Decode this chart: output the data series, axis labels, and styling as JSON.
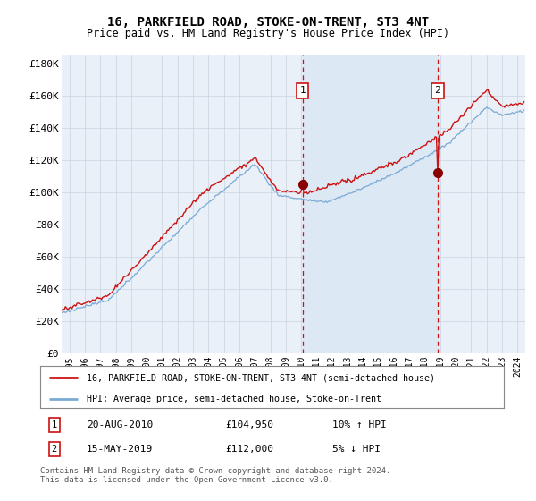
{
  "title": "16, PARKFIELD ROAD, STOKE-ON-TRENT, ST3 4NT",
  "subtitle": "Price paid vs. HM Land Registry's House Price Index (HPI)",
  "ylim": [
    0,
    185000
  ],
  "yticks": [
    0,
    20000,
    40000,
    60000,
    80000,
    100000,
    120000,
    140000,
    160000,
    180000
  ],
  "ytick_labels": [
    "£0",
    "£20K",
    "£40K",
    "£60K",
    "£80K",
    "£100K",
    "£120K",
    "£140K",
    "£160K",
    "£180K"
  ],
  "hpi_color": "#7aaad4",
  "price_color": "#cc1111",
  "shade_color": "#dde8f5",
  "marker1_date_idx": 187,
  "marker1_label": "1",
  "marker1_price": 104950,
  "marker1_text": "20-AUG-2010",
  "marker1_premium": "10% ↑ HPI",
  "marker2_date_idx": 292,
  "marker2_label": "2",
  "marker2_price": 112000,
  "marker2_text": "15-MAY-2019",
  "marker2_premium": "5% ↓ HPI",
  "legend_line1": "16, PARKFIELD ROAD, STOKE-ON-TRENT, ST3 4NT (semi-detached house)",
  "legend_line2": "HPI: Average price, semi-detached house, Stoke-on-Trent",
  "footer": "Contains HM Land Registry data © Crown copyright and database right 2024.\nThis data is licensed under the Open Government Licence v3.0.",
  "plot_bg": "#eaf0f8"
}
